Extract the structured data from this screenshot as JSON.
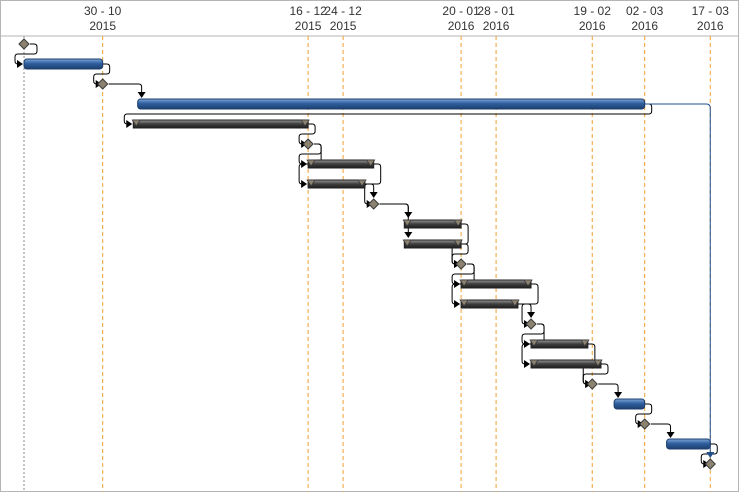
{
  "chart_data": {
    "type": "gantt",
    "title": "",
    "axis": {
      "ticks": [
        {
          "date": "2015-10-30",
          "day_month": "30 - 10",
          "year": "2015"
        },
        {
          "date": "2015-12-16",
          "day_month": "16 - 12",
          "year": "2015"
        },
        {
          "date": "2015-12-24",
          "day_month": "24 - 12",
          "year": "2015"
        },
        {
          "date": "2016-01-20",
          "day_month": "20 - 01",
          "year": "2016"
        },
        {
          "date": "2016-01-28",
          "day_month": "28 - 01",
          "year": "2016"
        },
        {
          "date": "2016-02-19",
          "day_month": "19 - 02",
          "year": "2016"
        },
        {
          "date": "2016-03-02",
          "day_month": "02 - 03",
          "year": "2016"
        },
        {
          "date": "2016-03-17",
          "day_month": "17 - 03",
          "year": "2016"
        }
      ],
      "range": [
        "2015-10-12",
        "2016-03-19"
      ]
    },
    "grid": "vertical dashed lines at tick dates",
    "rows": [
      {
        "kind": "milestone",
        "date": "2015-10-12"
      },
      {
        "kind": "summary",
        "start": "2015-10-12",
        "end": "2015-10-30"
      },
      {
        "kind": "milestone",
        "date": "2015-10-30"
      },
      {
        "kind": "summary",
        "start": "2015-11-07",
        "end": "2016-03-02"
      },
      {
        "kind": "task",
        "start": "2015-11-06",
        "end": "2015-12-16"
      },
      {
        "kind": "milestone",
        "date": "2015-12-16"
      },
      {
        "kind": "task",
        "start": "2015-12-16",
        "end": "2015-12-31"
      },
      {
        "kind": "task",
        "start": "2015-12-16",
        "end": "2015-12-29"
      },
      {
        "kind": "milestone",
        "date": "2015-12-31"
      },
      {
        "kind": "task",
        "start": "2016-01-07",
        "end": "2016-01-20"
      },
      {
        "kind": "task",
        "start": "2016-01-07",
        "end": "2016-01-20"
      },
      {
        "kind": "milestone",
        "date": "2016-01-20"
      },
      {
        "kind": "task",
        "start": "2016-01-20",
        "end": "2016-02-05"
      },
      {
        "kind": "task",
        "start": "2016-01-20",
        "end": "2016-02-02"
      },
      {
        "kind": "milestone",
        "date": "2016-02-05"
      },
      {
        "kind": "task",
        "start": "2016-02-05",
        "end": "2016-02-18"
      },
      {
        "kind": "task",
        "start": "2016-02-05",
        "end": "2016-02-21"
      },
      {
        "kind": "milestone",
        "date": "2016-02-19"
      },
      {
        "kind": "summary",
        "start": "2016-02-24",
        "end": "2016-03-02"
      },
      {
        "kind": "milestone",
        "date": "2016-03-02"
      },
      {
        "kind": "summary",
        "start": "2016-03-07",
        "end": "2016-03-17"
      },
      {
        "kind": "milestone",
        "date": "2016-03-17"
      }
    ],
    "links": [
      [
        0,
        1
      ],
      [
        1,
        2
      ],
      [
        2,
        3
      ],
      [
        3,
        4
      ],
      [
        4,
        5
      ],
      [
        5,
        6
      ],
      [
        5,
        7
      ],
      [
        6,
        8
      ],
      [
        7,
        8
      ],
      [
        8,
        9
      ],
      [
        8,
        10
      ],
      [
        9,
        11
      ],
      [
        10,
        11
      ],
      [
        11,
        12
      ],
      [
        11,
        13
      ],
      [
        12,
        14
      ],
      [
        13,
        14
      ],
      [
        14,
        15
      ],
      [
        14,
        16
      ],
      [
        15,
        17
      ],
      [
        16,
        17
      ],
      [
        17,
        18
      ],
      [
        18,
        19
      ],
      [
        19,
        20
      ],
      [
        20,
        21
      ],
      [
        3,
        21
      ]
    ],
    "colors": {
      "summary": "#2e5f9e",
      "task": "#3d3d3d",
      "milestone": "#8c8270",
      "link": "#000000",
      "summary_link": "#1f4e8c",
      "grid_weekly": "#f0a030",
      "grid_start": "#8a8a8a",
      "header_line": "#b5b5b5"
    }
  }
}
